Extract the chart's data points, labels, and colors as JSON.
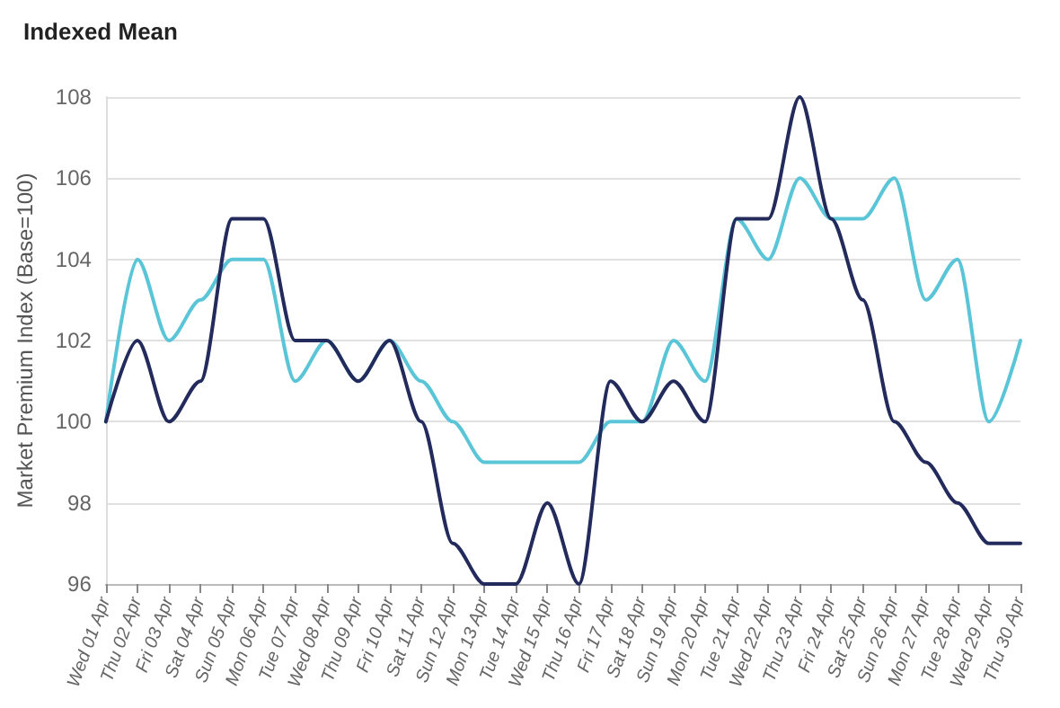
{
  "chart_data": {
    "type": "line",
    "title": "Indexed Mean",
    "ylabel": "Market Premium Index (Base=100)",
    "categories": [
      "Wed 01 Apr",
      "Thu 02 Apr",
      "Fri 03 Apr",
      "Sat 04 Apr",
      "Sun 05 Apr",
      "Mon 06 Apr",
      "Tue 07 Apr",
      "Wed 08 Apr",
      "Thu 09 Apr",
      "Fri 10 Apr",
      "Sat 11 Apr",
      "Sun 12 Apr",
      "Mon 13 Apr",
      "Tue 14 Apr",
      "Wed 15 Apr",
      "Thu 16 Apr",
      "Fri 17 Apr",
      "Sat 18 Apr",
      "Sun 19 Apr",
      "Mon 20 Apr",
      "Tue 21 Apr",
      "Wed 22 Apr",
      "Thu 23 Apr",
      "Fri 24 Apr",
      "Sat 25 Apr",
      "Sun 26 Apr",
      "Mon 27 Apr",
      "Tue 28 Apr",
      "Wed 29 Apr",
      "Thu 30 Apr"
    ],
    "series": [
      {
        "color": "#5bc5d8",
        "values": [
          100,
          104,
          102,
          103,
          104,
          104,
          101,
          102,
          101,
          102,
          101,
          100,
          99,
          99,
          99,
          99,
          100,
          100,
          102,
          101,
          105,
          104,
          106,
          105,
          105,
          106,
          103,
          104,
          100,
          102
        ]
      },
      {
        "color": "#232a5c",
        "values": [
          100,
          102,
          100,
          101,
          105,
          105,
          102,
          102,
          101,
          102,
          100,
          97,
          96,
          96,
          98,
          96,
          101,
          100,
          101,
          100,
          105,
          105,
          108,
          105,
          103,
          100,
          99,
          98,
          97,
          97
        ]
      }
    ],
    "ylim": [
      96,
      108
    ],
    "yticks": [
      96,
      98,
      100,
      102,
      104,
      106,
      108
    ],
    "grid": "y",
    "marker": "none",
    "line_style": "solid"
  }
}
